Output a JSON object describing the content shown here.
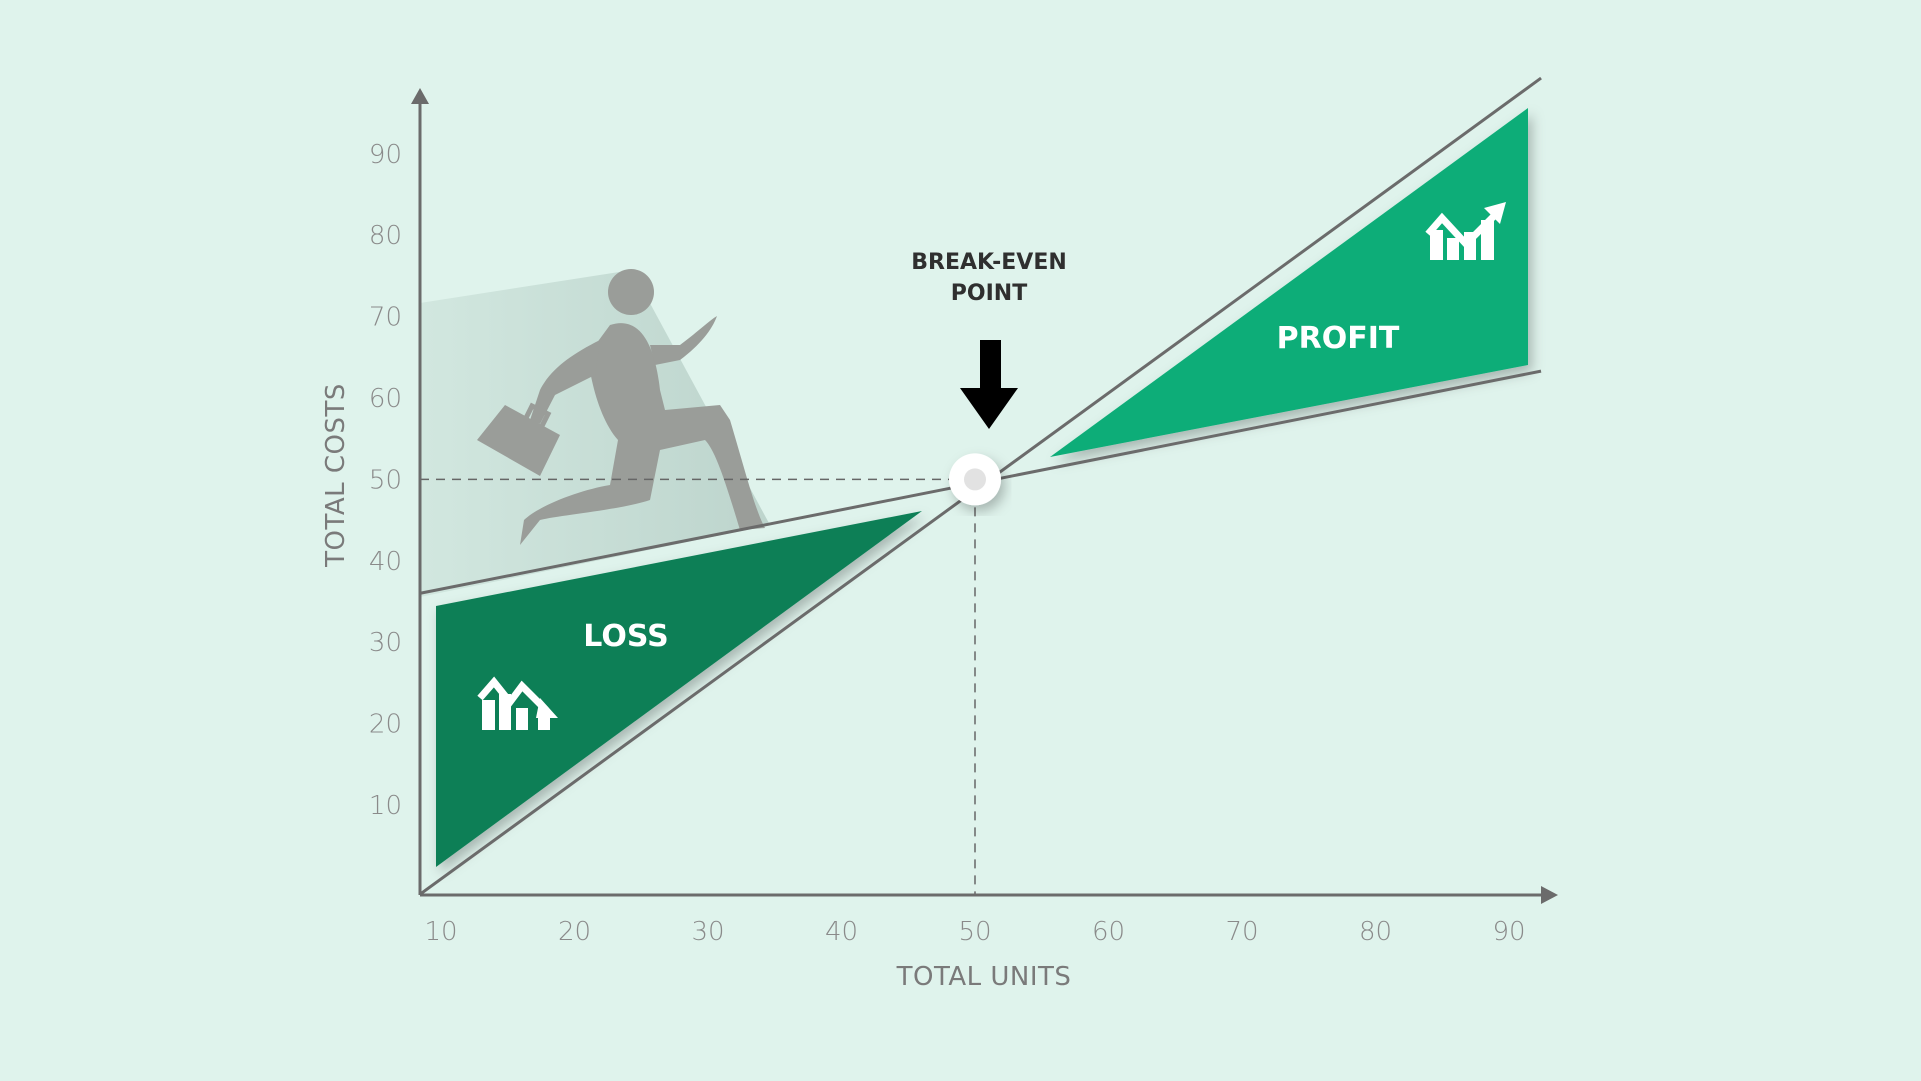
{
  "chart_data": {
    "type": "line",
    "title": "",
    "xlabel": "TOTAL UNITS",
    "ylabel": "TOTAL COSTS",
    "x_ticks": [
      10,
      20,
      30,
      40,
      50,
      60,
      70,
      80,
      90
    ],
    "y_ticks": [
      10,
      20,
      30,
      40,
      50,
      60,
      70,
      80,
      90
    ],
    "grid": false,
    "series": [
      {
        "points": [
          [
            8.4,
            -1
          ],
          [
            92.4,
            99.3
          ]
        ],
        "color": "#6b6b6b"
      },
      {
        "points": [
          [
            8.4,
            36
          ],
          [
            92.4,
            63.3
          ]
        ],
        "color": "#6b6b6b"
      }
    ],
    "break_even": {
      "x": 50,
      "y": 50,
      "label_line1": "BREAK-EVEN",
      "label_line2": "POINT"
    },
    "regions": [
      {
        "label": "LOSS",
        "color": "#0e7f57",
        "icon": "chart-trend-down-icon"
      },
      {
        "label": "PROFIT",
        "color": "#10ad78",
        "icon": "chart-trend-up-icon"
      }
    ],
    "colors": {
      "background": "#dff3ec",
      "axis": "#6b6b6b",
      "figure": "#9a9d99"
    }
  }
}
